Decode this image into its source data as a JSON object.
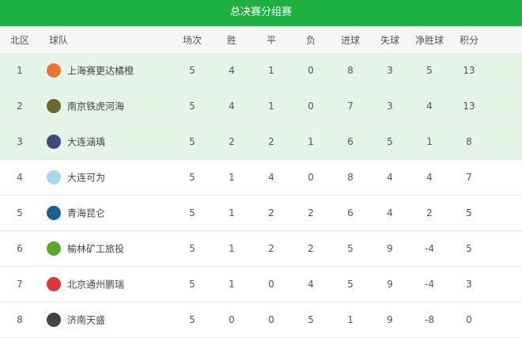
{
  "title": "总决赛分组赛",
  "headers": [
    "北区",
    "球队",
    "场次",
    "胜",
    "平",
    "负",
    "进球",
    "失球",
    "净胜球",
    "积分"
  ],
  "rows": [
    {
      "rank": "1",
      "team": "上海赛更达橘橙",
      "logo": "#e8743a",
      "p": "5",
      "w": "4",
      "d": "1",
      "l": "0",
      "gf": "8",
      "ga": "3",
      "gd": "5",
      "pts": "13",
      "highlight": true
    },
    {
      "rank": "2",
      "team": "南京铁虎河海",
      "logo": "#6b6a2a",
      "p": "5",
      "w": "4",
      "d": "1",
      "l": "0",
      "gf": "7",
      "ga": "3",
      "gd": "4",
      "pts": "13",
      "highlight": true
    },
    {
      "rank": "3",
      "team": "大连涵瑀",
      "logo": "#3d4a7a",
      "p": "5",
      "w": "2",
      "d": "2",
      "l": "1",
      "gf": "6",
      "ga": "5",
      "gd": "1",
      "pts": "8",
      "highlight": true
    },
    {
      "rank": "4",
      "team": "大连可为",
      "logo": "#a8d8ea",
      "p": "5",
      "w": "1",
      "d": "4",
      "l": "0",
      "gf": "8",
      "ga": "4",
      "gd": "4",
      "pts": "7",
      "highlight": false
    },
    {
      "rank": "5",
      "team": "青海昆仑",
      "logo": "#1f5f8b",
      "p": "5",
      "w": "1",
      "d": "2",
      "l": "2",
      "gf": "6",
      "ga": "4",
      "gd": "2",
      "pts": "5",
      "highlight": false
    },
    {
      "rank": "6",
      "team": "榆林矿工旅投",
      "logo": "#5aa832",
      "p": "5",
      "w": "1",
      "d": "2",
      "l": "2",
      "gf": "5",
      "ga": "9",
      "gd": "-4",
      "pts": "5",
      "highlight": false
    },
    {
      "rank": "7",
      "team": "北京通州鹏瑞",
      "logo": "#d9363e",
      "p": "5",
      "w": "1",
      "d": "0",
      "l": "4",
      "gf": "5",
      "ga": "9",
      "gd": "-4",
      "pts": "3",
      "highlight": false
    },
    {
      "rank": "8",
      "team": "济南天盛",
      "logo": "#444444",
      "p": "5",
      "w": "0",
      "d": "0",
      "l": "5",
      "gf": "1",
      "ga": "9",
      "gd": "-8",
      "pts": "0",
      "highlight": false
    }
  ]
}
